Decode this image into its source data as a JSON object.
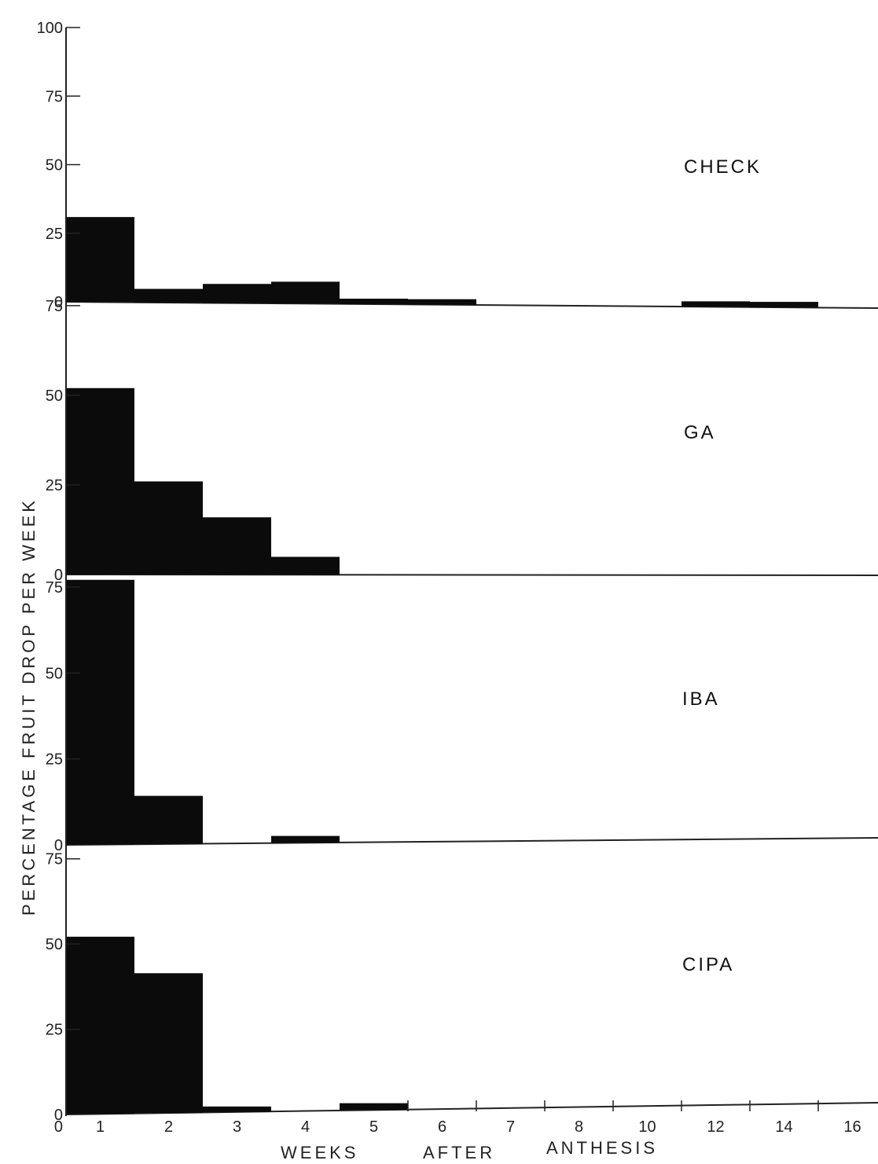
{
  "chart_data": [
    {
      "type": "bar",
      "title": "CHECK",
      "categories": [
        "1",
        "2",
        "3",
        "4",
        "5",
        "6",
        "7",
        "8",
        "10",
        "12",
        "14",
        "16"
      ],
      "values": [
        31,
        5,
        7,
        8,
        2,
        1.5,
        0,
        0,
        0,
        1.5,
        1.5,
        0
      ],
      "yticks": [
        "0",
        "25",
        "50",
        "75",
        "100"
      ],
      "ylim": [
        0,
        100
      ]
    },
    {
      "type": "bar",
      "title": "GA",
      "categories": [
        "1",
        "2",
        "3",
        "4",
        "5",
        "6",
        "7",
        "8",
        "10",
        "12",
        "14",
        "16"
      ],
      "values": [
        52,
        26,
        16,
        5,
        0,
        0,
        0,
        0,
        0,
        0,
        0,
        0
      ],
      "yticks": [
        "0",
        "25",
        "50",
        "75"
      ],
      "ylim": [
        0,
        80
      ]
    },
    {
      "type": "bar",
      "title": "IBA",
      "categories": [
        "1",
        "2",
        "3",
        "4",
        "5",
        "6",
        "7",
        "8",
        "10",
        "12",
        "14",
        "16"
      ],
      "values": [
        77,
        14,
        0,
        2,
        0,
        0,
        0,
        0,
        0,
        0,
        0,
        0
      ],
      "yticks": [
        "0",
        "25",
        "50",
        "75"
      ],
      "ylim": [
        0,
        80
      ]
    },
    {
      "type": "bar",
      "title": "CIPA",
      "categories": [
        "1",
        "2",
        "3",
        "4",
        "5",
        "6",
        "7",
        "8",
        "10",
        "12",
        "14",
        "16"
      ],
      "values": [
        52,
        41,
        1,
        0,
        2,
        0,
        0,
        0,
        0,
        0,
        0,
        0
      ],
      "yticks": [
        "0",
        "25",
        "50",
        "75"
      ],
      "ylim": [
        0,
        80
      ]
    }
  ],
  "axes": {
    "ylabel": "PERCENTAGE FRUIT DROP PER WEEK",
    "xlabel_words": [
      "WEEKS",
      "AFTER",
      "ANTHESIS"
    ],
    "xticks": [
      "1",
      "2",
      "3",
      "4",
      "5",
      "6",
      "7",
      "8",
      "10",
      "12",
      "14",
      "16"
    ],
    "y_zero_label": "0"
  },
  "colors": {
    "bar": "#0b0b0b",
    "axis": "#222222",
    "background": "#ffffff"
  }
}
